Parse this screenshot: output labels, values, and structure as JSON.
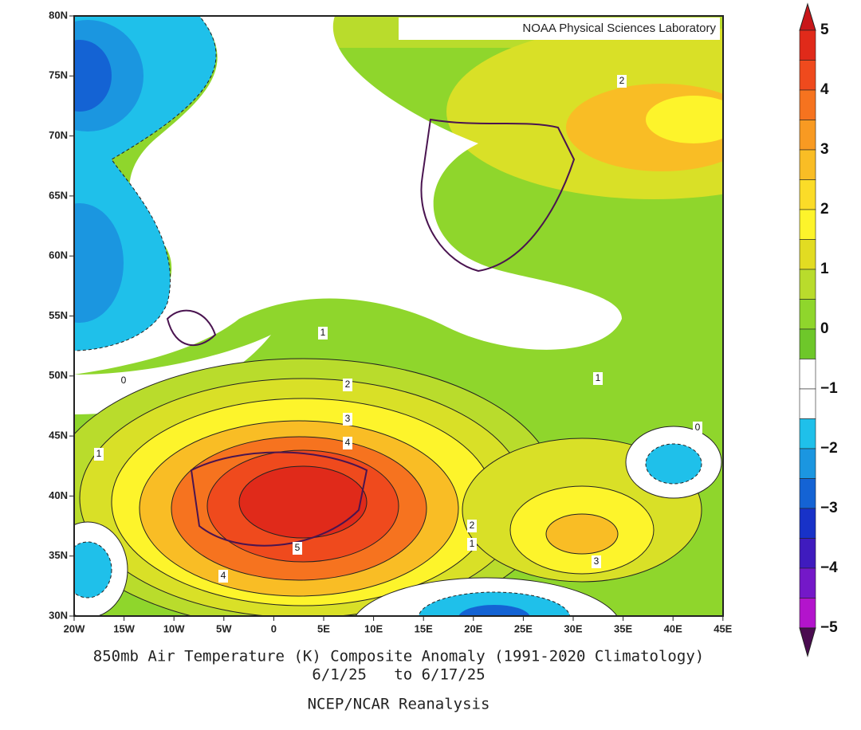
{
  "credit": "NOAA Physical Sciences Laboratory",
  "caption": {
    "title": "850mb Air Temperature (K) Composite Anomaly (1991-2020 Climatology)",
    "dates": "6/1/25   to 6/17/25",
    "source": "NCEP/NCAR Reanalysis"
  },
  "lat_labels": [
    "80N",
    "75N",
    "70N",
    "65N",
    "60N",
    "55N",
    "50N",
    "45N",
    "40N",
    "35N",
    "30N"
  ],
  "lon_labels": [
    "20W",
    "15W",
    "10W",
    "5W",
    "0",
    "5E",
    "10E",
    "15E",
    "20E",
    "25E",
    "30E",
    "35E",
    "40E",
    "45E"
  ],
  "colorbar": {
    "labels": [
      "5",
      "4",
      "3",
      "2",
      "1",
      "0",
      "−1",
      "−2",
      "−3",
      "−4",
      "−5"
    ],
    "top_color": "#c8161a",
    "bottom_color": "#4a0c50",
    "colors": [
      "#e02a1a",
      "#ef4a1d",
      "#f6731f",
      "#f89a22",
      "#f9bd25",
      "#fbdc28",
      "#fdf42b",
      "#e2dc22",
      "#b9dc2c",
      "#8fd62c",
      "#6ec72a",
      "#ffffff",
      "#ffffff",
      "#1fc0ea",
      "#1b96e0",
      "#1463d4",
      "#1832c8",
      "#3f1bbe",
      "#7418c8",
      "#b314cc"
    ]
  },
  "contour_labels": [
    "2",
    "1",
    "0",
    "1",
    "2",
    "3",
    "4",
    "1",
    "0",
    "5",
    "4",
    "2",
    "1",
    "3"
  ]
}
